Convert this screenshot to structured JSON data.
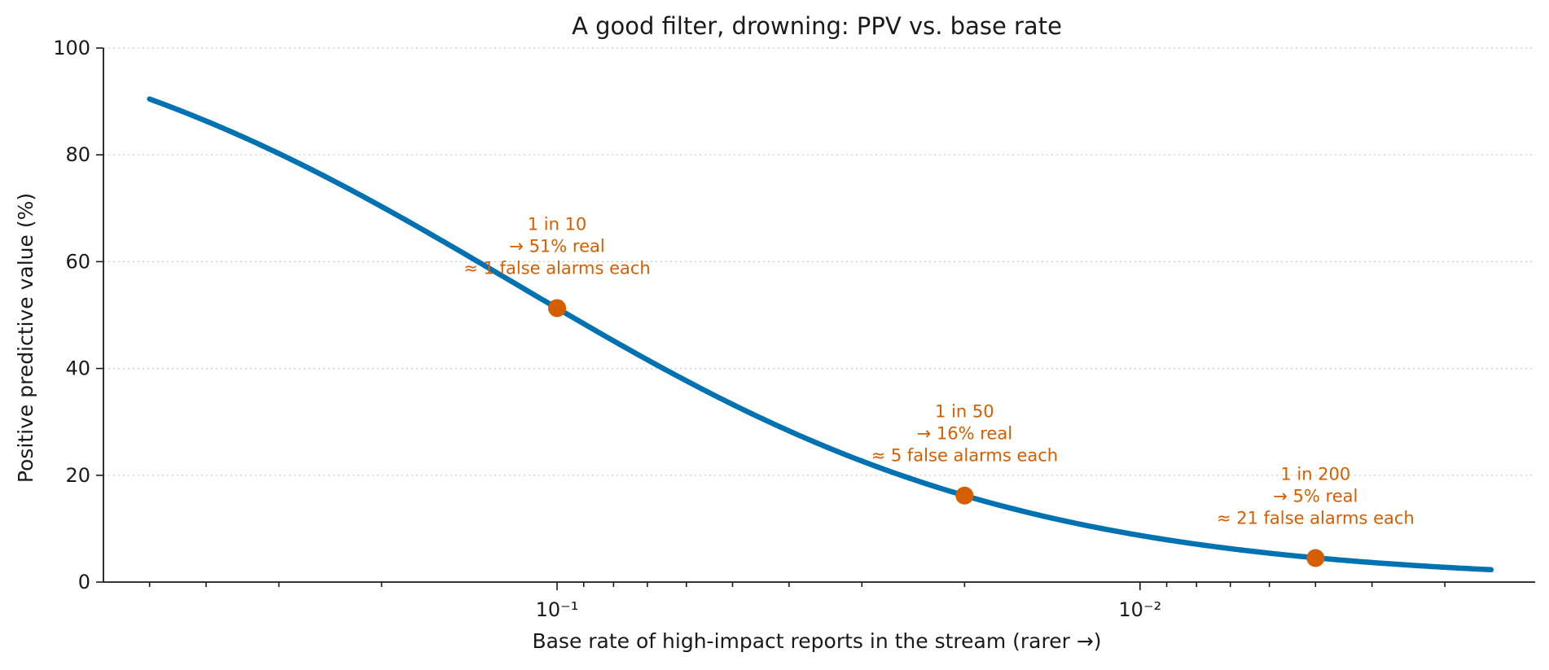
{
  "chart_data": {
    "type": "line",
    "title": "A good filter, drowning: PPV vs. base rate",
    "xlabel": "Base rate of high-impact reports in the stream (rarer →)",
    "ylabel": "Positive predictive value (%)",
    "x_scale": "log",
    "x_reversed": true,
    "xlim": [
      0.6,
      0.0021
    ],
    "ylim": [
      0,
      100
    ],
    "x_ticks": [
      {
        "value": 0.1,
        "label": "10⁻¹"
      },
      {
        "value": 0.01,
        "label": "10⁻²"
      }
    ],
    "y_ticks": [
      0,
      20,
      40,
      60,
      80,
      100
    ],
    "grid": "y-dotted",
    "series_color": "#0072b2",
    "highlight_color": "#d55e00",
    "curve": {
      "sensitivity": 0.9,
      "false_positive_rate": 0.095,
      "x_min": 0.0025,
      "x_max": 0.5
    },
    "points": [
      {
        "x": 0.1,
        "y": 51.3,
        "lines": [
          "1 in 10",
          "→ 51% real",
          "≈ 1 false alarms each"
        ]
      },
      {
        "x": 0.02,
        "y": 16.2,
        "lines": [
          "1 in 50",
          "→ 16% real",
          "≈ 5 false alarms each"
        ]
      },
      {
        "x": 0.005,
        "y": 4.5,
        "lines": [
          "1 in 200",
          "→ 5% real",
          "≈ 21 false alarms each"
        ]
      }
    ]
  }
}
